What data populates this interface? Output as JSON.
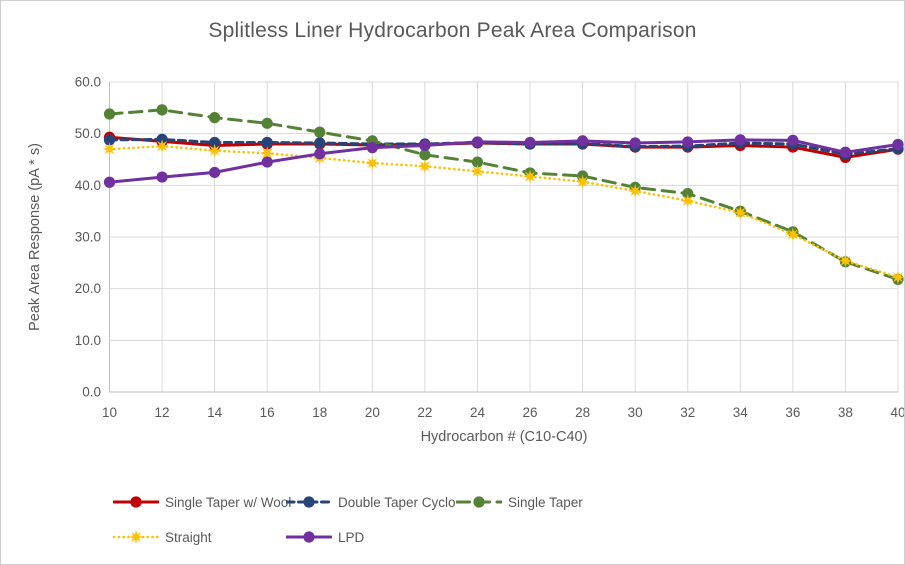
{
  "title": "Splitless Liner Hydrocarbon Peak Area Comparison",
  "colors": {
    "text": "#595959",
    "gridline": "#d9d9d9",
    "axis_line": "#bfbfbf",
    "background": "#ffffff"
  },
  "chart_data": {
    "type": "line",
    "title": "Splitless Liner Hydrocarbon Peak Area Comparison",
    "xlabel": "Hydrocarbon # (C10-C40)",
    "ylabel": "Peak Area Response (pA * s)",
    "xlim": [
      10,
      40
    ],
    "ylim": [
      0,
      60
    ],
    "grid": true,
    "legend_position": "bottom",
    "x": [
      10,
      12,
      14,
      16,
      18,
      20,
      22,
      24,
      26,
      28,
      30,
      32,
      34,
      36,
      38,
      40
    ],
    "x_tick_labels": [
      "10",
      "12",
      "14",
      "16",
      "18",
      "20",
      "22",
      "24",
      "26",
      "28",
      "30",
      "32",
      "34",
      "36",
      "38",
      "40"
    ],
    "y_ticks": [
      0,
      10,
      20,
      30,
      40,
      50,
      60
    ],
    "y_tick_labels": [
      "0.0",
      "10.0",
      "20.0",
      "30.0",
      "40.0",
      "50.0",
      "60.0"
    ],
    "series": [
      {
        "name": "Single Taper w/ Wool",
        "color": "#c00000",
        "line_style": "solid",
        "marker": "circle",
        "values": [
          49.3,
          48.5,
          47.7,
          48.0,
          48.0,
          47.8,
          47.9,
          48.2,
          48.0,
          48.0,
          47.4,
          47.4,
          47.7,
          47.4,
          45.4,
          47.0
        ]
      },
      {
        "name": "Double Taper Cyclo",
        "color": "#264478",
        "line_style": "dashed",
        "marker": "circle",
        "values": [
          48.8,
          48.9,
          48.3,
          48.3,
          48.2,
          48.0,
          48.0,
          48.3,
          48.0,
          48.1,
          47.5,
          47.6,
          48.2,
          48.0,
          46.0,
          47.1
        ]
      },
      {
        "name": "Single Taper",
        "color": "#548235",
        "line_style": "long-dash",
        "marker": "circle",
        "values": [
          53.8,
          54.6,
          53.1,
          52.0,
          50.3,
          48.6,
          45.9,
          44.5,
          42.4,
          41.8,
          39.6,
          38.4,
          35.0,
          31.0,
          25.2,
          21.8
        ]
      },
      {
        "name": "Straight",
        "color": "#ffc000",
        "line_style": "dotted",
        "marker": "star",
        "values": [
          47.0,
          47.6,
          46.7,
          46.2,
          45.3,
          44.3,
          43.7,
          42.7,
          41.7,
          40.7,
          38.9,
          37.0,
          34.7,
          30.5,
          25.4,
          22.2
        ]
      },
      {
        "name": "LPD",
        "color": "#7030a0",
        "line_style": "solid",
        "marker": "circle",
        "values": [
          40.6,
          41.6,
          42.5,
          44.5,
          46.1,
          47.3,
          47.7,
          48.4,
          48.3,
          48.6,
          48.2,
          48.4,
          48.8,
          48.7,
          46.4,
          47.9
        ]
      }
    ]
  }
}
